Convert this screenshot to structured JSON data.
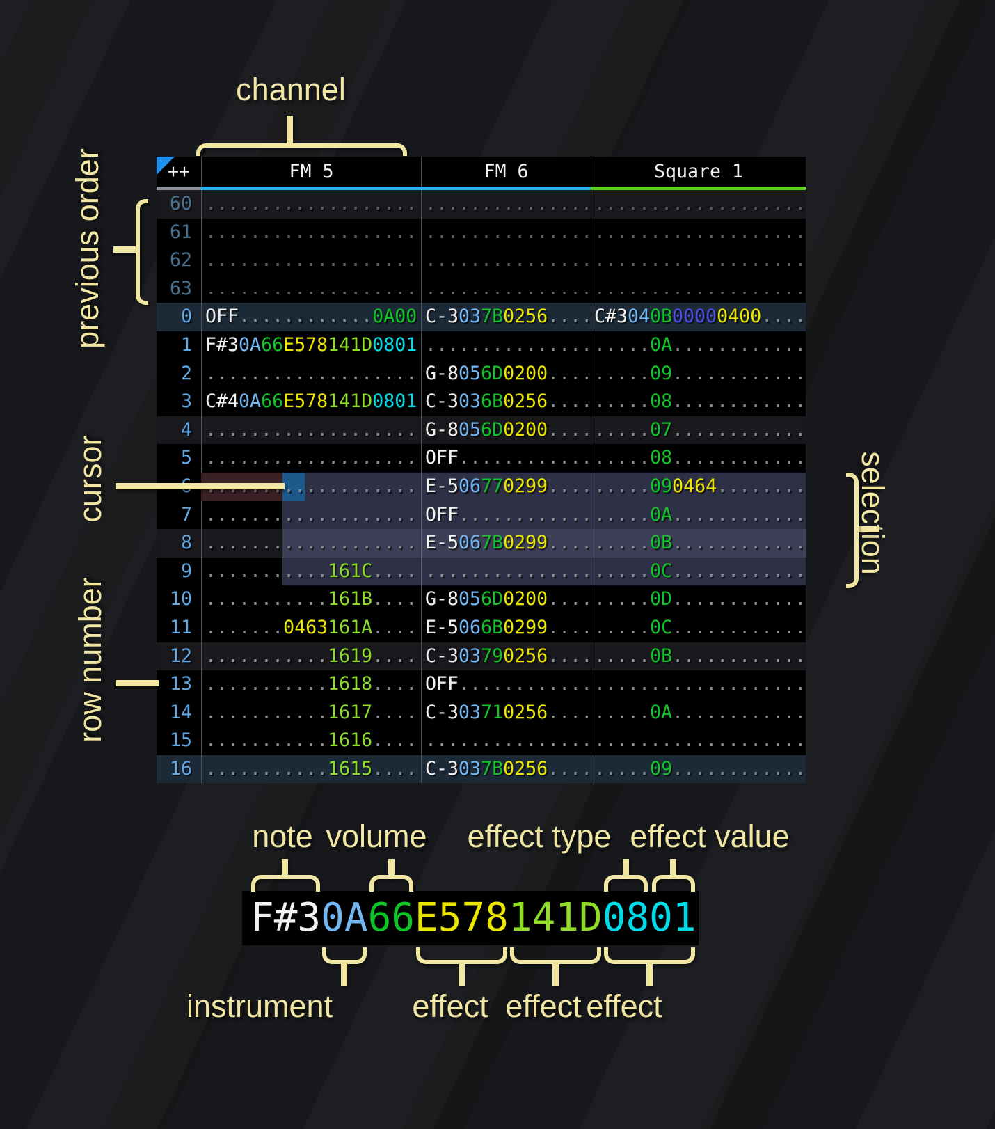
{
  "annotations": {
    "channel": "channel",
    "previous_order": "previous order",
    "cursor": "cursor",
    "row_number": "row number",
    "selection": "selection",
    "note": "note",
    "volume": "volume",
    "effect_type": "effect type",
    "effect_value": "effect value",
    "instrument": "instrument",
    "effect_1": "effect",
    "effect_2": "effect",
    "effect_3": "effect"
  },
  "theme": {
    "accent": "#f1e7a3",
    "sep": "#4e5256",
    "tri": "#1e90ee",
    "h4": "#19191d",
    "h16": "#1c2a38"
  },
  "tracker": {
    "corner_label": "++",
    "corner_underline_color": "#8d9298",
    "channels": [
      {
        "name": "FM 5",
        "underline_color": "#29b2f2"
      },
      {
        "name": "FM 6",
        "underline_color": "#29b2f2"
      },
      {
        "name": "Square 1",
        "underline_color": "#5fd01f"
      }
    ],
    "seg_colors": {
      "w": "#f2f2f2",
      "b": "#72b6f2",
      "g": "#10c428",
      "y": "#eae600",
      "l": "#90dd28",
      "c": "#00dde8",
      "i": "#4d4fe2",
      "d": "#8b9093"
    },
    "dim_dot_color": "#5c6065",
    "row_num_color": "#61a7e3",
    "prev_row_num_color": "#49728e",
    "cursor_color": "#1e598c",
    "cursor_row_color": "#3a2126",
    "selection_color": "rgba(110,116,168,0.42)",
    "state": {
      "cursor_row": 6,
      "selection_rows": [
        6,
        9
      ]
    },
    "rows": [
      {
        "n": "60",
        "prev": true,
        "hl": "h4",
        "cells": [
          [
            [
              "...................",
              "d"
            ]
          ],
          [
            [
              "...............",
              "d"
            ]
          ],
          [
            [
              "...................",
              "d"
            ]
          ]
        ]
      },
      {
        "n": "61",
        "prev": true,
        "hl": "",
        "cells": [
          [
            [
              "...................",
              "d"
            ]
          ],
          [
            [
              "...............",
              "d"
            ]
          ],
          [
            [
              "...................",
              "d"
            ]
          ]
        ]
      },
      {
        "n": "62",
        "prev": true,
        "hl": "",
        "cells": [
          [
            [
              "...................",
              "d"
            ]
          ],
          [
            [
              "...............",
              "d"
            ]
          ],
          [
            [
              "...................",
              "d"
            ]
          ]
        ]
      },
      {
        "n": "63",
        "prev": true,
        "hl": "",
        "cells": [
          [
            [
              "...................",
              "d"
            ]
          ],
          [
            [
              "...............",
              "d"
            ]
          ],
          [
            [
              "...................",
              "d"
            ]
          ]
        ]
      },
      {
        "n": "0",
        "hl": "h16",
        "cells": [
          [
            [
              "OFF",
              "w"
            ],
            [
              "............",
              "d"
            ],
            [
              "0A00",
              "g"
            ]
          ],
          [
            [
              "C-3",
              "w"
            ],
            [
              "03",
              "b"
            ],
            [
              "7B",
              "g"
            ],
            [
              "0256",
              "y"
            ],
            [
              "....",
              "d"
            ]
          ],
          [
            [
              "C#3",
              "w"
            ],
            [
              "04",
              "b"
            ],
            [
              "0B",
              "g"
            ],
            [
              "0000",
              "i"
            ],
            [
              "0400",
              "y"
            ],
            [
              "....",
              "d"
            ]
          ]
        ]
      },
      {
        "n": "1",
        "hl": "",
        "cells": [
          [
            [
              "F#3",
              "w"
            ],
            [
              "0A",
              "b"
            ],
            [
              "66",
              "g"
            ],
            [
              "E578",
              "y"
            ],
            [
              "141D",
              "l"
            ],
            [
              "0801",
              "c"
            ]
          ],
          [
            [
              "...............",
              "d"
            ]
          ],
          [
            [
              ".....",
              "d"
            ],
            [
              "0A",
              "g"
            ],
            [
              "............",
              "d"
            ]
          ]
        ]
      },
      {
        "n": "2",
        "hl": "",
        "cells": [
          [
            [
              "...................",
              "d"
            ]
          ],
          [
            [
              "G-8",
              "w"
            ],
            [
              "05",
              "b"
            ],
            [
              "6D",
              "g"
            ],
            [
              "0200",
              "y"
            ],
            [
              "....",
              "d"
            ]
          ],
          [
            [
              ".....",
              "d"
            ],
            [
              "09",
              "g"
            ],
            [
              "............",
              "d"
            ]
          ]
        ]
      },
      {
        "n": "3",
        "hl": "",
        "cells": [
          [
            [
              "C#4",
              "w"
            ],
            [
              "0A",
              "b"
            ],
            [
              "66",
              "g"
            ],
            [
              "E578",
              "y"
            ],
            [
              "141D",
              "l"
            ],
            [
              "0801",
              "c"
            ]
          ],
          [
            [
              "C-3",
              "w"
            ],
            [
              "03",
              "b"
            ],
            [
              "6B",
              "g"
            ],
            [
              "0256",
              "y"
            ],
            [
              "....",
              "d"
            ]
          ],
          [
            [
              ".....",
              "d"
            ],
            [
              "08",
              "g"
            ],
            [
              "............",
              "d"
            ]
          ]
        ]
      },
      {
        "n": "4",
        "hl": "h4",
        "cells": [
          [
            [
              "...................",
              "d"
            ]
          ],
          [
            [
              "G-8",
              "w"
            ],
            [
              "05",
              "b"
            ],
            [
              "6D",
              "g"
            ],
            [
              "0200",
              "y"
            ],
            [
              "....",
              "d"
            ]
          ],
          [
            [
              ".....",
              "d"
            ],
            [
              "07",
              "g"
            ],
            [
              "............",
              "d"
            ]
          ]
        ]
      },
      {
        "n": "5",
        "hl": "",
        "cells": [
          [
            [
              "...................",
              "d"
            ]
          ],
          [
            [
              "OFF",
              "w"
            ],
            [
              "............",
              "d"
            ]
          ],
          [
            [
              ".....",
              "d"
            ],
            [
              "08",
              "g"
            ],
            [
              "............",
              "d"
            ]
          ]
        ]
      },
      {
        "n": "6",
        "hl": "",
        "cells": [
          [
            [
              "...................",
              "d"
            ]
          ],
          [
            [
              "E-5",
              "w"
            ],
            [
              "06",
              "b"
            ],
            [
              "77",
              "g"
            ],
            [
              "0299",
              "y"
            ],
            [
              "....",
              "d"
            ]
          ],
          [
            [
              ".....",
              "d"
            ],
            [
              "09",
              "g"
            ],
            [
              "0464",
              "y"
            ],
            [
              "........",
              "d"
            ]
          ]
        ]
      },
      {
        "n": "7",
        "hl": "",
        "cells": [
          [
            [
              "...................",
              "d"
            ]
          ],
          [
            [
              "OFF",
              "w"
            ],
            [
              "............",
              "d"
            ]
          ],
          [
            [
              ".....",
              "d"
            ],
            [
              "0A",
              "g"
            ],
            [
              "............",
              "d"
            ]
          ]
        ]
      },
      {
        "n": "8",
        "hl": "h4",
        "cells": [
          [
            [
              "...................",
              "d"
            ]
          ],
          [
            [
              "E-5",
              "w"
            ],
            [
              "06",
              "b"
            ],
            [
              "7B",
              "g"
            ],
            [
              "0299",
              "y"
            ],
            [
              "....",
              "d"
            ]
          ],
          [
            [
              ".....",
              "d"
            ],
            [
              "0B",
              "g"
            ],
            [
              "............",
              "d"
            ]
          ]
        ]
      },
      {
        "n": "9",
        "hl": "",
        "cells": [
          [
            [
              "...........",
              "d"
            ],
            [
              "161C",
              "l"
            ],
            [
              "....",
              "d"
            ]
          ],
          [
            [
              "...............",
              "d"
            ]
          ],
          [
            [
              ".....",
              "d"
            ],
            [
              "0C",
              "g"
            ],
            [
              "............",
              "d"
            ]
          ]
        ]
      },
      {
        "n": "10",
        "hl": "",
        "cells": [
          [
            [
              "...........",
              "d"
            ],
            [
              "161B",
              "l"
            ],
            [
              "....",
              "d"
            ]
          ],
          [
            [
              "G-8",
              "w"
            ],
            [
              "05",
              "b"
            ],
            [
              "6D",
              "g"
            ],
            [
              "0200",
              "y"
            ],
            [
              "....",
              "d"
            ]
          ],
          [
            [
              ".....",
              "d"
            ],
            [
              "0D",
              "g"
            ],
            [
              "............",
              "d"
            ]
          ]
        ]
      },
      {
        "n": "11",
        "hl": "",
        "cells": [
          [
            [
              ".......",
              "d"
            ],
            [
              "0463",
              "y"
            ],
            [
              "161A",
              "l"
            ],
            [
              "....",
              "d"
            ]
          ],
          [
            [
              "E-5",
              "w"
            ],
            [
              "06",
              "b"
            ],
            [
              "6B",
              "g"
            ],
            [
              "0299",
              "y"
            ],
            [
              "....",
              "d"
            ]
          ],
          [
            [
              ".....",
              "d"
            ],
            [
              "0C",
              "g"
            ],
            [
              "............",
              "d"
            ]
          ]
        ]
      },
      {
        "n": "12",
        "hl": "h4",
        "cells": [
          [
            [
              "...........",
              "d"
            ],
            [
              "1619",
              "l"
            ],
            [
              "....",
              "d"
            ]
          ],
          [
            [
              "C-3",
              "w"
            ],
            [
              "03",
              "b"
            ],
            [
              "79",
              "g"
            ],
            [
              "0256",
              "y"
            ],
            [
              "....",
              "d"
            ]
          ],
          [
            [
              ".....",
              "d"
            ],
            [
              "0B",
              "g"
            ],
            [
              "............",
              "d"
            ]
          ]
        ]
      },
      {
        "n": "13",
        "hl": "",
        "cells": [
          [
            [
              "...........",
              "d"
            ],
            [
              "1618",
              "l"
            ],
            [
              "....",
              "d"
            ]
          ],
          [
            [
              "OFF",
              "w"
            ],
            [
              "............",
              "d"
            ]
          ],
          [
            [
              "...................",
              "d"
            ]
          ]
        ]
      },
      {
        "n": "14",
        "hl": "",
        "cells": [
          [
            [
              "...........",
              "d"
            ],
            [
              "1617",
              "l"
            ],
            [
              "....",
              "d"
            ]
          ],
          [
            [
              "C-3",
              "w"
            ],
            [
              "03",
              "b"
            ],
            [
              "71",
              "g"
            ],
            [
              "0256",
              "y"
            ],
            [
              "....",
              "d"
            ]
          ],
          [
            [
              ".....",
              "d"
            ],
            [
              "0A",
              "g"
            ],
            [
              "............",
              "d"
            ]
          ]
        ]
      },
      {
        "n": "15",
        "hl": "",
        "cells": [
          [
            [
              "...........",
              "d"
            ],
            [
              "1616",
              "l"
            ],
            [
              "....",
              "d"
            ]
          ],
          [
            [
              "...............",
              "d"
            ]
          ],
          [
            [
              "...................",
              "d"
            ]
          ]
        ]
      },
      {
        "n": "16",
        "hl": "h16",
        "cells": [
          [
            [
              "...........",
              "d"
            ],
            [
              "1615",
              "l"
            ],
            [
              "....",
              "d"
            ]
          ],
          [
            [
              "C-3",
              "w"
            ],
            [
              "03",
              "b"
            ],
            [
              "7B",
              "g"
            ],
            [
              "0256",
              "y"
            ],
            [
              "....",
              "d"
            ]
          ],
          [
            [
              ".....",
              "d"
            ],
            [
              "09",
              "g"
            ],
            [
              "............",
              "d"
            ]
          ]
        ]
      }
    ]
  },
  "detail": {
    "segments": [
      [
        "F#3",
        "w"
      ],
      [
        "0A",
        "b"
      ],
      [
        "66",
        "g"
      ],
      [
        "E578",
        "y"
      ],
      [
        "141D",
        "l"
      ],
      [
        "0801",
        "c"
      ]
    ]
  }
}
